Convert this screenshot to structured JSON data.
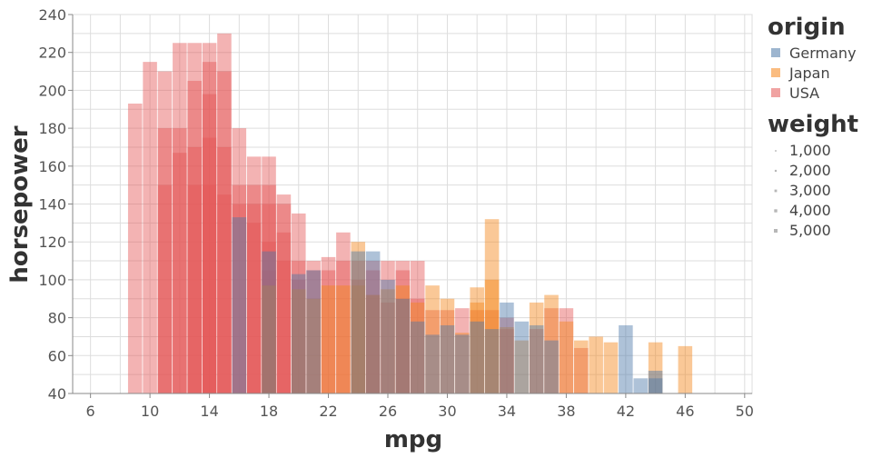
{
  "chart_data": {
    "type": "bar",
    "xlabel": "mpg",
    "ylabel": "horsepower",
    "xlim": [
      4.8,
      50.5
    ],
    "ylim": [
      40,
      240
    ],
    "x_ticks": [
      6,
      10,
      14,
      18,
      22,
      26,
      30,
      34,
      38,
      42,
      46,
      50
    ],
    "y_ticks": [
      40,
      60,
      80,
      100,
      120,
      140,
      160,
      180,
      200,
      220,
      240
    ],
    "grid": true,
    "bar_width_mpg": 0.95,
    "bar_opacity": 0.45,
    "legend_placement": "right",
    "legends": [
      {
        "title": "origin",
        "kind": "color",
        "entries": [
          {
            "label": "Germany",
            "color": "#4c78a8"
          },
          {
            "label": "Japan",
            "color": "#f58518"
          },
          {
            "label": "USA",
            "color": "#e45756"
          }
        ]
      },
      {
        "title": "weight",
        "kind": "size",
        "entries": [
          {
            "label": "1,000",
            "value": 1000
          },
          {
            "label": "2,000",
            "value": 2000
          },
          {
            "label": "3,000",
            "value": 3000
          },
          {
            "label": "4,000",
            "value": 4000
          },
          {
            "label": "5,000",
            "value": 5000
          }
        ]
      }
    ],
    "series": [
      {
        "name": "USA",
        "color": "#e45756",
        "points": [
          [
            9,
            193
          ],
          [
            10,
            215
          ],
          [
            11,
            210
          ],
          [
            11,
            180
          ],
          [
            11,
            150
          ],
          [
            12,
            225
          ],
          [
            12,
            180
          ],
          [
            12,
            167
          ],
          [
            13,
            225
          ],
          [
            13,
            205
          ],
          [
            13,
            170
          ],
          [
            13,
            150
          ],
          [
            14,
            225
          ],
          [
            14,
            215
          ],
          [
            14,
            198
          ],
          [
            14,
            175
          ],
          [
            14,
            150
          ],
          [
            15,
            230
          ],
          [
            15,
            210
          ],
          [
            15,
            170
          ],
          [
            15,
            145
          ],
          [
            16,
            180
          ],
          [
            16,
            150
          ],
          [
            16,
            140
          ],
          [
            17,
            165
          ],
          [
            17,
            150
          ],
          [
            17,
            140
          ],
          [
            17,
            130
          ],
          [
            18,
            165
          ],
          [
            18,
            150
          ],
          [
            18,
            140
          ],
          [
            18,
            120
          ],
          [
            18,
            105
          ],
          [
            19,
            145
          ],
          [
            19,
            140
          ],
          [
            19,
            125
          ],
          [
            19,
            110
          ],
          [
            20,
            135
          ],
          [
            20,
            110
          ],
          [
            20,
            100
          ],
          [
            21,
            110
          ],
          [
            21,
            105
          ],
          [
            22,
            112
          ],
          [
            22,
            105
          ],
          [
            23,
            125
          ],
          [
            23,
            110
          ],
          [
            24,
            110
          ],
          [
            24,
            100
          ],
          [
            25,
            110
          ],
          [
            25,
            105
          ],
          [
            25,
            92
          ],
          [
            26,
            110
          ],
          [
            26,
            88
          ],
          [
            27,
            110
          ],
          [
            27,
            105
          ],
          [
            27,
            90
          ],
          [
            28,
            110
          ],
          [
            28,
            90
          ],
          [
            29,
            84
          ],
          [
            30,
            84
          ],
          [
            31,
            85
          ],
          [
            32,
            84
          ],
          [
            33,
            84
          ],
          [
            34,
            80
          ],
          [
            34,
            74
          ],
          [
            36,
            74
          ],
          [
            37,
            85
          ],
          [
            38,
            85
          ],
          [
            39,
            64
          ]
        ]
      },
      {
        "name": "Japan",
        "color": "#f58518",
        "points": [
          [
            18,
            97
          ],
          [
            20,
            95
          ],
          [
            21,
            90
          ],
          [
            22,
            97
          ],
          [
            23,
            97
          ],
          [
            24,
            120
          ],
          [
            24,
            97
          ],
          [
            25,
            92
          ],
          [
            26,
            95
          ],
          [
            27,
            97
          ],
          [
            28,
            88
          ],
          [
            29,
            97
          ],
          [
            30,
            90
          ],
          [
            31,
            72
          ],
          [
            32,
            96
          ],
          [
            32,
            88
          ],
          [
            33,
            132
          ],
          [
            33,
            100
          ],
          [
            34,
            75
          ],
          [
            35,
            68
          ],
          [
            36,
            88
          ],
          [
            37,
            92
          ],
          [
            38,
            78
          ],
          [
            39,
            68
          ],
          [
            40,
            70
          ],
          [
            41,
            67
          ],
          [
            44,
            67
          ],
          [
            46,
            65
          ]
        ]
      },
      {
        "name": "Germany",
        "color": "#4c78a8",
        "points": [
          [
            16,
            133
          ],
          [
            18,
            115
          ],
          [
            20,
            103
          ],
          [
            21,
            105
          ],
          [
            24,
            115
          ],
          [
            25,
            115
          ],
          [
            26,
            100
          ],
          [
            27,
            90
          ],
          [
            28,
            78
          ],
          [
            29,
            71
          ],
          [
            30,
            76
          ],
          [
            31,
            71
          ],
          [
            32,
            78
          ],
          [
            33,
            74
          ],
          [
            34,
            88
          ],
          [
            35,
            78
          ],
          [
            36,
            76
          ],
          [
            37,
            68
          ],
          [
            42,
            76
          ],
          [
            43,
            48
          ],
          [
            44,
            52
          ],
          [
            44,
            48
          ]
        ]
      }
    ]
  }
}
